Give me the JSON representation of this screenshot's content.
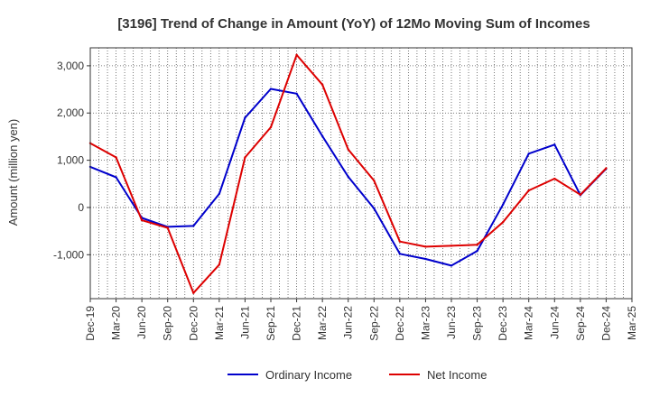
{
  "chart_data": {
    "type": "line",
    "title": "[3196]  Trend of Change in Amount (YoY) of 12Mo Moving Sum of Incomes",
    "xlabel": "",
    "ylabel": "Amount (million yen)",
    "ylim": [
      -1930,
      3380
    ],
    "yticks": [
      3000,
      2000,
      1000,
      0,
      -1000
    ],
    "ytick_labels": [
      "3,000",
      "2,000",
      "1,000",
      "0",
      "-1,000"
    ],
    "categories": [
      "Dec-19",
      "Mar-20",
      "Jun-20",
      "Sep-20",
      "Dec-20",
      "Mar-21",
      "Jun-21",
      "Sep-21",
      "Dec-21",
      "Mar-22",
      "Jun-22",
      "Sep-22",
      "Dec-22",
      "Mar-23",
      "Jun-23",
      "Sep-23",
      "Dec-23",
      "Mar-24",
      "Jun-24",
      "Sep-24",
      "Dec-24",
      "Mar-25"
    ],
    "series": [
      {
        "name": "Ordinary Income",
        "color": "#0000cc",
        "values": [
          860,
          640,
          -220,
          -410,
          -390,
          290,
          1900,
          2510,
          2410,
          1510,
          650,
          -20,
          -980,
          -1090,
          -1230,
          -920,
          60,
          1140,
          1330,
          260,
          820,
          null
        ]
      },
      {
        "name": "Net Income",
        "color": "#dd0000",
        "values": [
          1360,
          1060,
          -270,
          -430,
          -1810,
          -1210,
          1060,
          1700,
          3230,
          2600,
          1230,
          570,
          -720,
          -830,
          -810,
          -790,
          -310,
          360,
          610,
          270,
          830,
          null
        ]
      }
    ],
    "grid": true,
    "legend": "bottom"
  }
}
